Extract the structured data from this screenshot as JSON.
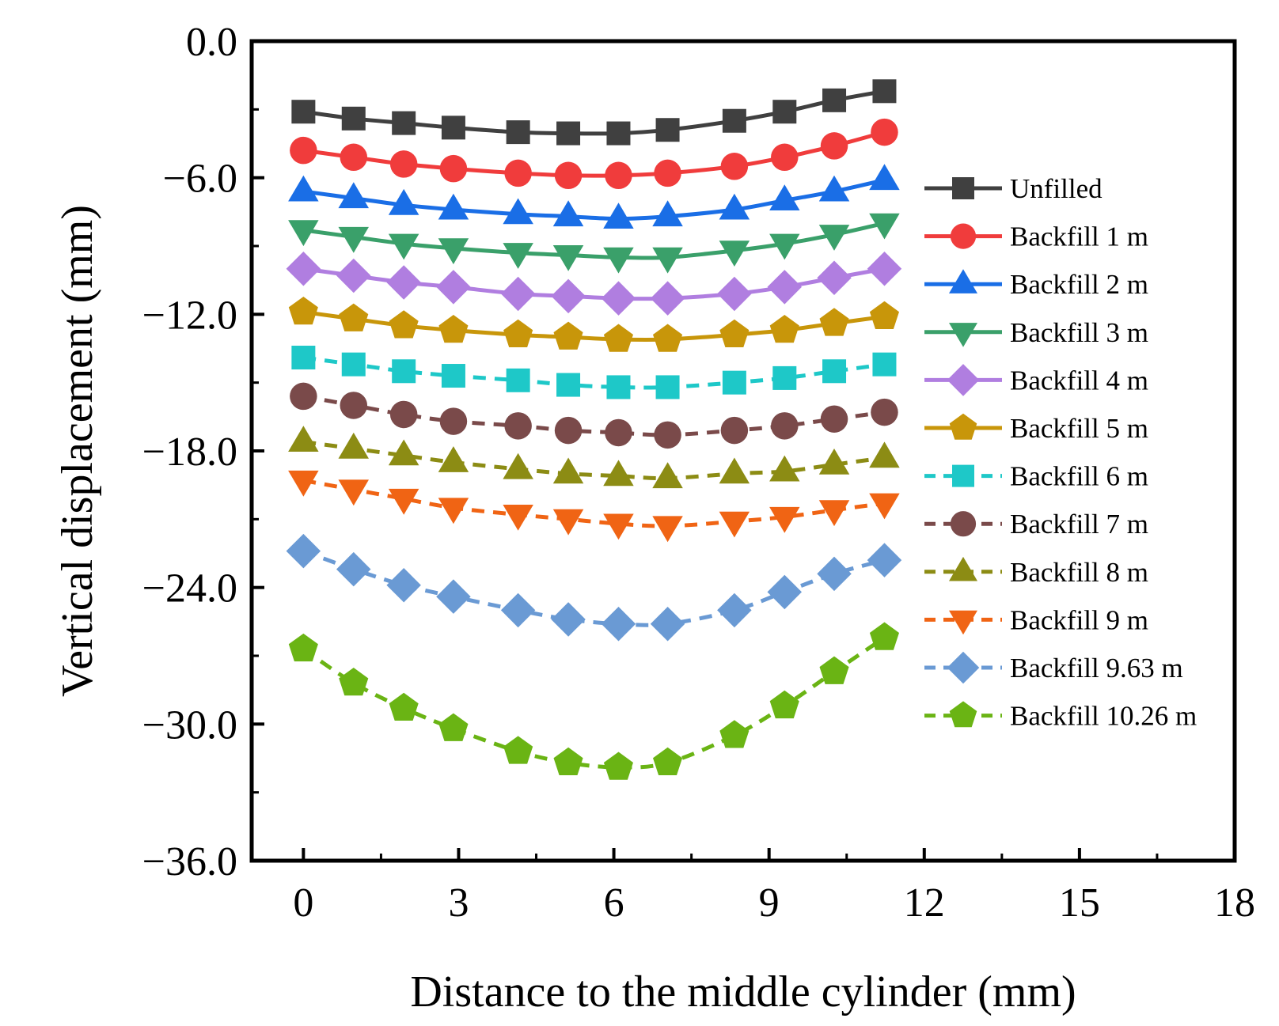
{
  "chart_data": {
    "type": "line",
    "title": "",
    "xlabel": "Distance to the middle cylinder (mm)",
    "ylabel": "Vertical displacement (mm)",
    "xlim": [
      -1,
      18
    ],
    "ylim": [
      -36,
      0
    ],
    "xticks": [
      0,
      3,
      6,
      9,
      12,
      15,
      18
    ],
    "xtick_labels": [
      "0",
      "3",
      "6",
      "9",
      "12",
      "15",
      "18"
    ],
    "yticks": [
      0,
      -6,
      -12,
      -18,
      -24,
      -30,
      -36
    ],
    "ytick_labels": [
      "0.0",
      "−6.0",
      "−12.0",
      "−18.0",
      "−24.0",
      "−30.0",
      "−36.0"
    ],
    "grid": false,
    "legend_position": "right",
    "x": [
      0,
      0.97,
      1.94,
      2.9,
      4.15,
      5.12,
      6.09,
      7.04,
      8.33,
      9.3,
      10.26,
      11.23
    ],
    "series": [
      {
        "name": "Unfilled",
        "color": "#404040",
        "marker": "square",
        "dashed": false,
        "values": [
          -3.1,
          -3.4,
          -3.6,
          -3.8,
          -4.0,
          -4.05,
          -4.05,
          -3.9,
          -3.5,
          -3.1,
          -2.6,
          -2.2
        ]
      },
      {
        "name": "Backfill 1 m",
        "color": "#f03c3c",
        "marker": "circle",
        "dashed": false,
        "values": [
          -4.8,
          -5.1,
          -5.4,
          -5.6,
          -5.8,
          -5.9,
          -5.9,
          -5.8,
          -5.5,
          -5.1,
          -4.6,
          -4.0
        ]
      },
      {
        "name": "Backfill 2 m",
        "color": "#1a6ee6",
        "marker": "triangle-up",
        "dashed": false,
        "values": [
          -6.6,
          -6.9,
          -7.2,
          -7.4,
          -7.6,
          -7.7,
          -7.8,
          -7.7,
          -7.4,
          -7.0,
          -6.6,
          -6.1
        ]
      },
      {
        "name": "Backfill 3 m",
        "color": "#3aa06a",
        "marker": "triangle-down",
        "dashed": false,
        "values": [
          -8.3,
          -8.6,
          -8.9,
          -9.1,
          -9.3,
          -9.4,
          -9.5,
          -9.5,
          -9.2,
          -8.9,
          -8.5,
          -8.0
        ]
      },
      {
        "name": "Backfill 4 m",
        "color": "#b07ee0",
        "marker": "diamond",
        "dashed": false,
        "values": [
          -10.0,
          -10.3,
          -10.6,
          -10.8,
          -11.1,
          -11.2,
          -11.3,
          -11.3,
          -11.1,
          -10.8,
          -10.4,
          -10.0
        ]
      },
      {
        "name": "Backfill 5 m",
        "color": "#c8960a",
        "marker": "pentagon",
        "dashed": false,
        "values": [
          -11.9,
          -12.2,
          -12.5,
          -12.7,
          -12.9,
          -13.0,
          -13.1,
          -13.1,
          -12.9,
          -12.7,
          -12.4,
          -12.1
        ]
      },
      {
        "name": "Backfill 6 m",
        "color": "#1ec8c8",
        "marker": "square",
        "dashed": true,
        "values": [
          -13.9,
          -14.2,
          -14.5,
          -14.7,
          -14.9,
          -15.1,
          -15.2,
          -15.2,
          -15.0,
          -14.8,
          -14.5,
          -14.2
        ]
      },
      {
        "name": "Backfill 7 m",
        "color": "#7a4a4a",
        "marker": "circle",
        "dashed": true,
        "values": [
          -15.6,
          -16.0,
          -16.4,
          -16.7,
          -16.9,
          -17.1,
          -17.2,
          -17.3,
          -17.1,
          -16.9,
          -16.6,
          -16.3
        ]
      },
      {
        "name": "Backfill 8 m",
        "color": "#8c8c14",
        "marker": "triangle-up",
        "dashed": true,
        "values": [
          -17.6,
          -17.9,
          -18.2,
          -18.5,
          -18.8,
          -19.0,
          -19.1,
          -19.2,
          -19.0,
          -18.9,
          -18.6,
          -18.3
        ]
      },
      {
        "name": "Backfill 9 m",
        "color": "#f06414",
        "marker": "triangle-down",
        "dashed": true,
        "values": [
          -19.3,
          -19.7,
          -20.1,
          -20.5,
          -20.8,
          -21.0,
          -21.2,
          -21.3,
          -21.1,
          -20.9,
          -20.6,
          -20.3
        ]
      },
      {
        "name": "Backfill 9.63 m",
        "color": "#6a9ad4",
        "marker": "diamond",
        "dashed": true,
        "values": [
          -22.4,
          -23.2,
          -23.9,
          -24.4,
          -25.0,
          -25.4,
          -25.6,
          -25.6,
          -25.0,
          -24.2,
          -23.4,
          -22.8
        ]
      },
      {
        "name": "Backfill 10.26 m",
        "color": "#6ab414",
        "marker": "pentagon",
        "dashed": true,
        "values": [
          -26.7,
          -28.2,
          -29.3,
          -30.2,
          -31.2,
          -31.7,
          -31.9,
          -31.7,
          -30.5,
          -29.2,
          -27.7,
          -26.2
        ]
      }
    ]
  }
}
